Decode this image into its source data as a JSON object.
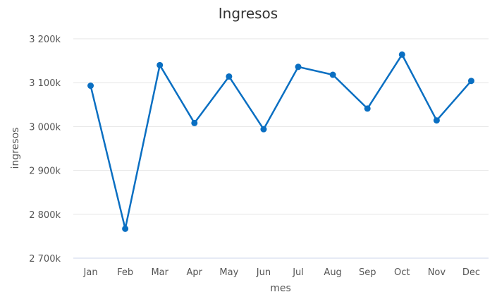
{
  "chart_data": {
    "type": "line",
    "title": "Ingresos",
    "xlabel": "mes",
    "ylabel": "ingresos",
    "categories": [
      "Jan",
      "Feb",
      "Mar",
      "Apr",
      "May",
      "Jun",
      "Jul",
      "Aug",
      "Sep",
      "Oct",
      "Nov",
      "Dec"
    ],
    "series": [
      {
        "values": [
          3093000,
          2767000,
          3140000,
          3008000,
          3114000,
          2994000,
          3136000,
          3118000,
          3041000,
          3164000,
          3014000,
          3104000
        ]
      }
    ],
    "ylim": [
      2700000,
      3200000
    ],
    "yticks": [
      3200000,
      3100000,
      3000000,
      2900000,
      2800000,
      2700000
    ],
    "ytick_labels": [
      "3 200k",
      "3 100k",
      "3 000k",
      "2 900k",
      "2 800k",
      "2 700k"
    ],
    "grid": true,
    "legend": "none",
    "colors": {
      "series": "#0a6fc2"
    }
  }
}
